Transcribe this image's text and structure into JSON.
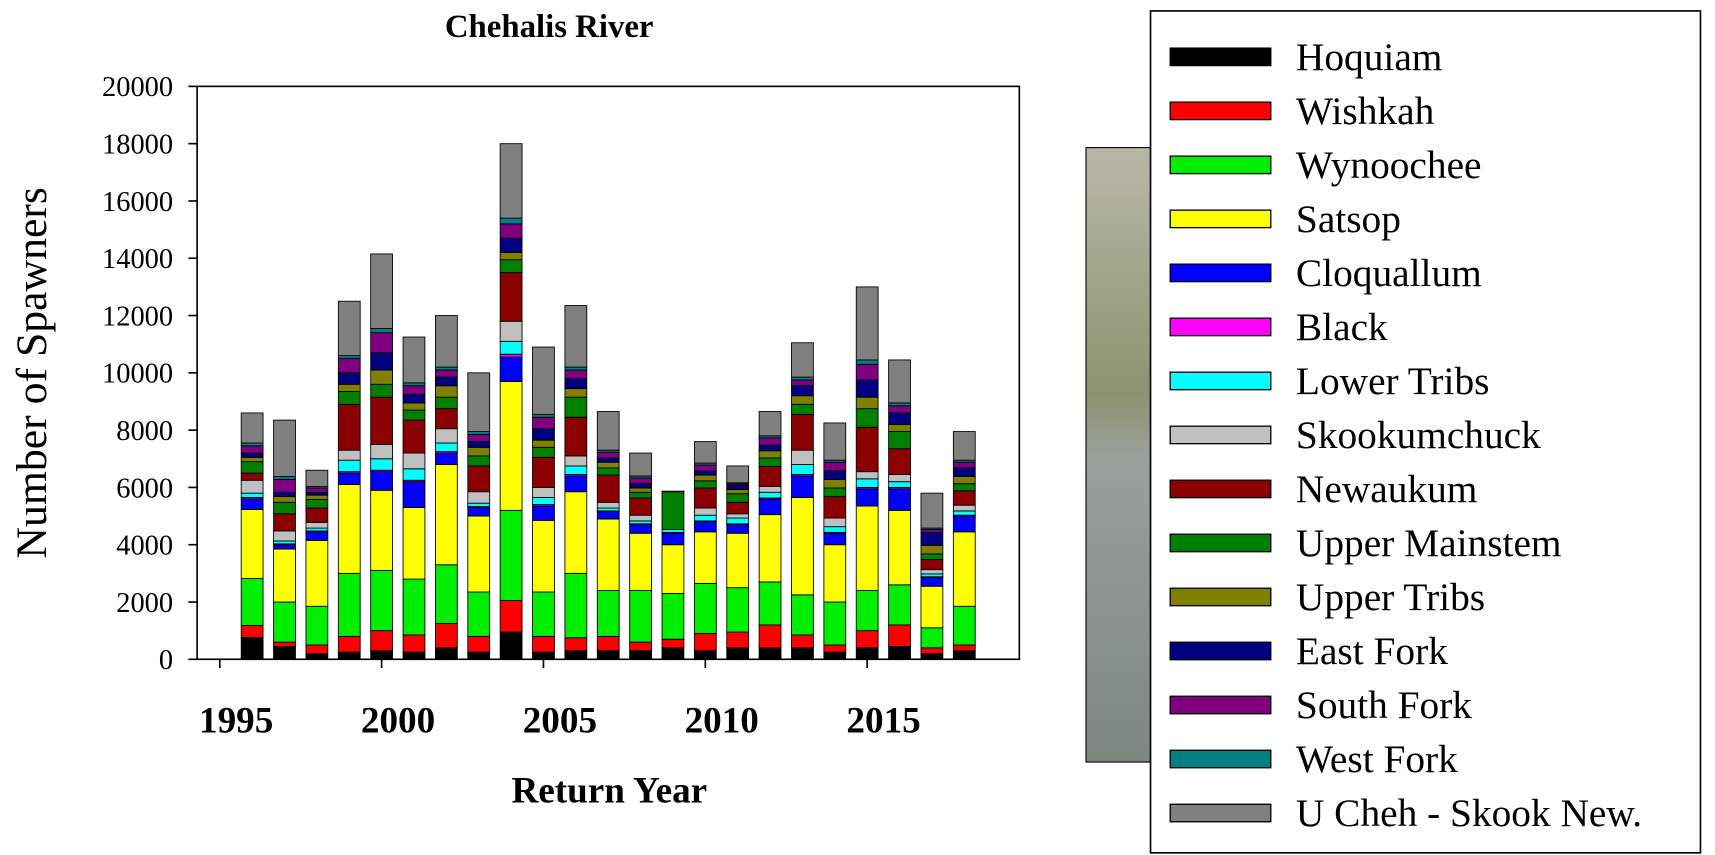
{
  "chart_data": {
    "type": "stacked_bar",
    "title": "Chehalis River",
    "xlabel": "Return Year",
    "ylabel": "Number of Spawners",
    "x": [
      1996,
      1997,
      1998,
      1999,
      2000,
      2001,
      2002,
      2003,
      2004,
      2005,
      2006,
      2007,
      2008,
      2009,
      2010,
      2011,
      2012,
      2013,
      2014,
      2015,
      2016,
      2017,
      2018
    ],
    "xlim": [
      1994.3,
      2019.7
    ],
    "xticks": [
      1995,
      2000,
      2005,
      2010,
      2015
    ],
    "ylim": [
      0,
      20000
    ],
    "yticks": [
      0,
      2000,
      4000,
      6000,
      8000,
      10000,
      12000,
      14000,
      16000,
      18000,
      20000
    ],
    "legend": "right",
    "series": [
      {
        "name": "Hoquiam",
        "color": "#000000",
        "values": [
          760,
          450,
          200,
          250,
          300,
          250,
          400,
          250,
          950,
          250,
          300,
          300,
          300,
          400,
          300,
          400,
          400,
          400,
          250,
          400,
          450,
          200,
          300
        ]
      },
      {
        "name": "Wishkah",
        "color": "#ff0000",
        "values": [
          420,
          150,
          300,
          550,
          700,
          600,
          850,
          550,
          1100,
          550,
          450,
          500,
          300,
          300,
          600,
          550,
          800,
          450,
          250,
          600,
          750,
          200,
          200
        ]
      },
      {
        "name": "Wynoochee",
        "color": "#00ee00",
        "values": [
          1640,
          1400,
          1350,
          2200,
          2100,
          1950,
          2050,
          1550,
          3150,
          1550,
          2250,
          1600,
          1800,
          1600,
          1750,
          1550,
          1500,
          1400,
          1500,
          1400,
          1400,
          700,
          1350
        ]
      },
      {
        "name": "Satsop",
        "color": "#ffff00",
        "values": [
          2410,
          1850,
          2300,
          3100,
          2800,
          2500,
          3500,
          2650,
          4500,
          2500,
          2850,
          2500,
          2000,
          1700,
          1800,
          1900,
          2350,
          3400,
          2000,
          2950,
          2600,
          1450,
          2600
        ]
      },
      {
        "name": "Cloquallum",
        "color": "#0000ff",
        "values": [
          370,
          150,
          300,
          400,
          650,
          900,
          400,
          300,
          850,
          500,
          550,
          250,
          300,
          400,
          350,
          300,
          550,
          750,
          400,
          600,
          750,
          300,
          550
        ]
      },
      {
        "name": "Black",
        "color": "#ff00ff",
        "values": [
          50,
          30,
          30,
          50,
          50,
          50,
          50,
          30,
          100,
          50,
          50,
          30,
          30,
          30,
          30,
          30,
          30,
          50,
          30,
          50,
          50,
          30,
          30
        ]
      },
      {
        "name": "Lower Tribs",
        "color": "#00ffff",
        "values": [
          150,
          100,
          100,
          400,
          400,
          400,
          300,
          120,
          450,
          250,
          300,
          100,
          100,
          100,
          200,
          200,
          200,
          350,
          200,
          300,
          200,
          100,
          150
        ]
      },
      {
        "name": "Skookumchuck",
        "color": "#c0c0c0",
        "values": [
          450,
          350,
          200,
          350,
          500,
          550,
          500,
          400,
          700,
          350,
          350,
          200,
          200,
          0,
          250,
          150,
          200,
          500,
          300,
          250,
          250,
          150,
          200
        ]
      },
      {
        "name": "Newaukum",
        "color": "#8b0000",
        "values": [
          250,
          600,
          500,
          1600,
          1650,
          1150,
          700,
          900,
          1700,
          1050,
          1350,
          950,
          600,
          0,
          700,
          400,
          700,
          1250,
          750,
          1550,
          900,
          350,
          500
        ]
      },
      {
        "name": "Upper Mainstem",
        "color": "#008000",
        "values": [
          400,
          400,
          300,
          450,
          450,
          350,
          400,
          350,
          450,
          350,
          700,
          250,
          200,
          1320,
          250,
          300,
          300,
          350,
          300,
          650,
          600,
          200,
          250
        ]
      },
      {
        "name": "Upper Tribs",
        "color": "#808000",
        "values": [
          150,
          200,
          150,
          250,
          500,
          250,
          400,
          300,
          250,
          250,
          300,
          200,
          150,
          0,
          200,
          150,
          250,
          300,
          300,
          400,
          250,
          300,
          250
        ]
      },
      {
        "name": "East Fork",
        "color": "#000080",
        "values": [
          150,
          150,
          100,
          400,
          600,
          300,
          300,
          200,
          500,
          400,
          350,
          150,
          150,
          0,
          150,
          150,
          200,
          350,
          300,
          600,
          400,
          450,
          300
        ]
      },
      {
        "name": "South Fork",
        "color": "#800080",
        "values": [
          250,
          450,
          150,
          500,
          700,
          300,
          250,
          250,
          500,
          400,
          300,
          200,
          200,
          0,
          200,
          50,
          250,
          200,
          300,
          550,
          250,
          100,
          200
        ]
      },
      {
        "name": "West Fork",
        "color": "#008080",
        "values": [
          100,
          100,
          50,
          100,
          150,
          100,
          100,
          100,
          200,
          100,
          100,
          70,
          70,
          0,
          70,
          30,
          70,
          100,
          70,
          150,
          100,
          50,
          70
        ]
      },
      {
        "name": "U Cheh - Skook New.",
        "color": "#808080",
        "values": [
          1050,
          1970,
          570,
          1900,
          2600,
          1600,
          1800,
          2050,
          2600,
          2350,
          2150,
          1350,
          800,
          20,
          750,
          590,
          850,
          1200,
          1300,
          2550,
          1500,
          1220,
          1000
        ]
      }
    ]
  }
}
